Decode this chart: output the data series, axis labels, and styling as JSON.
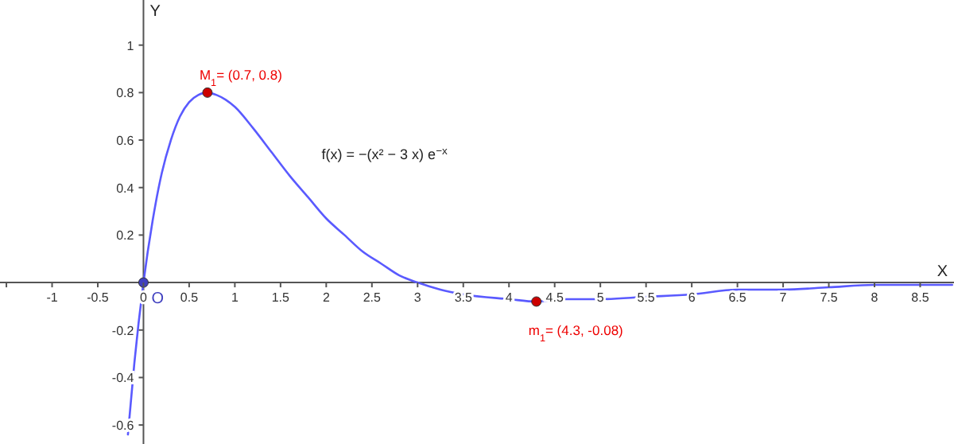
{
  "chart_data": {
    "type": "line",
    "xlabel": "X",
    "ylabel": "Y",
    "xlim": [
      -1.57,
      8.87
    ],
    "ylim": [
      -0.68,
      1.19
    ],
    "xticks": [
      {
        "value": -1.5,
        "label": null
      },
      -1,
      -0.5,
      0,
      0.5,
      1,
      1.5,
      2,
      2.5,
      3,
      3.5,
      4,
      4.5,
      5,
      5.5,
      6,
      6.5,
      7,
      7.5,
      8,
      8.5
    ],
    "yticks": [
      -0.6,
      -0.4,
      -0.2,
      0.2,
      0.4,
      0.6,
      0.8,
      1
    ],
    "grid": false,
    "series": [
      {
        "color": "#5a5aff",
        "line_style": "solid",
        "x": [
          -0.17,
          -0.1,
          0,
          0.1,
          0.2,
          0.3,
          0.4,
          0.5,
          0.6,
          0.7,
          0.8,
          0.9,
          1,
          1.2,
          1.4,
          1.6,
          1.8,
          2,
          2.2,
          2.4,
          2.6,
          2.8,
          3,
          3.25,
          3.5,
          4,
          4.3,
          4.6,
          5,
          5.5,
          6,
          6.5,
          7,
          7.5,
          8,
          8.5,
          8.85
        ],
        "values": [
          -0.64,
          -0.34,
          0,
          0.26,
          0.46,
          0.6,
          0.7,
          0.76,
          0.79,
          0.8,
          0.79,
          0.77,
          0.74,
          0.65,
          0.55,
          0.45,
          0.36,
          0.27,
          0.2,
          0.13,
          0.08,
          0.03,
          0,
          -0.03,
          -0.05,
          -0.07,
          -0.08,
          -0.07,
          -0.07,
          -0.06,
          -0.05,
          -0.03,
          -0.03,
          -0.02,
          -0.01,
          -0.01,
          -0.01
        ]
      },
      {
        "type": "scatter",
        "color": "#cc0000",
        "marker": "circle",
        "x": [
          0.7,
          4.3
        ],
        "values": [
          0.8,
          -0.08
        ]
      },
      {
        "type": "scatter",
        "color": "#3f3fbf",
        "marker": "circle",
        "x": [
          0
        ],
        "values": [
          0
        ]
      }
    ],
    "annotations": [
      {
        "text": "M$_{1}$= (0.7, 0.8)",
        "x": 0.7,
        "y": 0.8
      },
      {
        "text": "m$_{1}$= (4.3, -0.08)",
        "x": 4.3,
        "y": -0.08
      },
      {
        "text": "O",
        "x": 0,
        "y": 0
      },
      "f(x) = −(x² − 3 x) e$^{−x}$"
    ]
  }
}
